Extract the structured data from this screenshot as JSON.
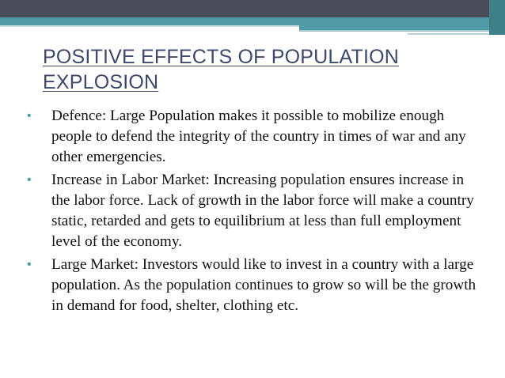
{
  "slide": {
    "title": "POSITIVE EFFECTS OF POPULATION EXPLOSION",
    "bullet_icon": "•",
    "accent_color": "#4f9aa4",
    "title_color": "#3e4a6b",
    "bullets": [
      {
        "text": "Defence: Large Population makes it possible to mobilize enough people to defend the integrity of the country in times of war and any other emergencies."
      },
      {
        "text": "Increase in Labor Market: Increasing population ensures increase in the labor force. Lack of growth in the labor force will make a country static, retarded and gets to equilibrium at less than full employment level of the economy."
      },
      {
        "text": "Large Market: Investors would like to invest in a country with a large population. As the population continues to grow so will be the growth in demand for food, shelter, clothing etc."
      }
    ]
  }
}
